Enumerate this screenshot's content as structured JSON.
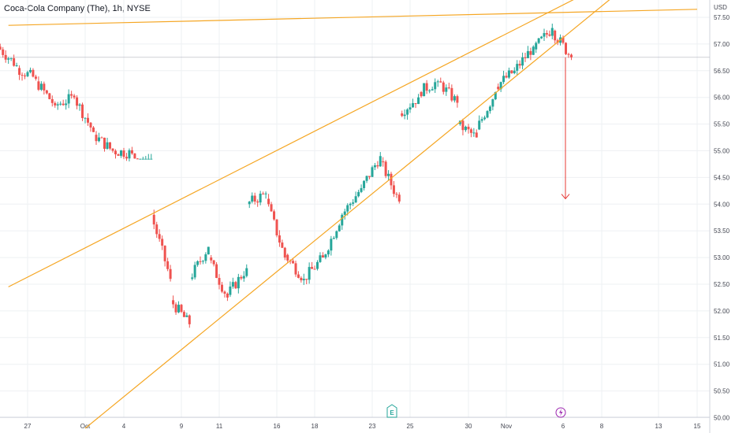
{
  "header": {
    "title": "Coca-Cola Company (The), 1h, NYSE",
    "currency": "USD"
  },
  "colors": {
    "up": "#26a69a",
    "down": "#ef5350",
    "trendline": "#f5a623",
    "arrow": "#e53935",
    "grid": "#eef0f3",
    "earnings_badge": "#26a69a",
    "dividend_badge": "#9c27b0"
  },
  "events": {
    "earnings": {
      "label": "E",
      "date": "Oct 24"
    },
    "dividend": {
      "icon": "lightning-icon",
      "date": "Nov 6"
    }
  },
  "chart_data": {
    "type": "candlestick",
    "title": "Coca-Cola Company (The), 1h, NYSE",
    "xlabel": "",
    "ylabel": "USD",
    "ylim": [
      50.0,
      57.75
    ],
    "grid": true,
    "x_ticks": [
      "27",
      "Oct",
      "4",
      "9",
      "11",
      "16",
      "18",
      "23",
      "25",
      "30",
      "Nov",
      "6",
      "8",
      "13",
      "15"
    ],
    "y_ticks": [
      "57.50",
      "57.00",
      "56.50",
      "56.00",
      "55.50",
      "55.00",
      "54.50",
      "54.00",
      "53.50",
      "53.00",
      "52.50",
      "52.00",
      "51.50",
      "51.00",
      "50.50",
      "50.00"
    ],
    "last_price": 56.75,
    "anchors": [
      {
        "d": "Sep 26",
        "o": 56.95,
        "c": 56.6,
        "l": 56.5,
        "h": 57.05
      },
      {
        "d": "Sep 27",
        "o": 56.55,
        "c": 56.35,
        "l": 56.25,
        "h": 56.6
      },
      {
        "d": "Sep 28",
        "o": 56.3,
        "c": 55.85,
        "l": 55.7,
        "h": 56.4
      },
      {
        "d": "Sep 29",
        "o": 55.85,
        "c": 56.0,
        "l": 55.7,
        "h": 56.15
      },
      {
        "d": "Oct 2",
        "o": 56.0,
        "c": 55.35,
        "l": 55.2,
        "h": 56.1
      },
      {
        "d": "Oct 3",
        "o": 55.3,
        "c": 55.0,
        "l": 54.85,
        "h": 55.5
      },
      {
        "d": "Oct 4",
        "o": 55.0,
        "c": 54.95,
        "l": 54.8,
        "h": 55.15
      },
      {
        "d": "Oct 5",
        "o": 54.95,
        "c": 54.5,
        "l": 54.85,
        "h": 55.1
      },
      {
        "d": "Oct 6",
        "o": 53.8,
        "c": 52.6,
        "l": 52.4,
        "h": 53.9
      },
      {
        "d": "Oct 9",
        "o": 52.2,
        "c": 51.75,
        "l": 51.55,
        "h": 52.5
      },
      {
        "d": "Oct 10",
        "o": 52.6,
        "c": 53.2,
        "l": 52.5,
        "h": 53.3
      },
      {
        "d": "Oct 11",
        "o": 53.0,
        "c": 52.25,
        "l": 52.1,
        "h": 53.2
      },
      {
        "d": "Oct 12",
        "o": 52.3,
        "c": 52.8,
        "l": 52.2,
        "h": 52.9
      },
      {
        "d": "Oct 13",
        "o": 54.0,
        "c": 54.2,
        "l": 53.9,
        "h": 54.35
      },
      {
        "d": "Oct 16",
        "o": 54.1,
        "c": 53.0,
        "l": 52.9,
        "h": 54.2
      },
      {
        "d": "Oct 17",
        "o": 53.05,
        "c": 52.6,
        "l": 52.45,
        "h": 53.7
      },
      {
        "d": "Oct 18",
        "o": 52.6,
        "c": 53.0,
        "l": 52.45,
        "h": 53.1
      },
      {
        "d": "Oct 19",
        "o": 53.0,
        "c": 53.8,
        "l": 52.9,
        "h": 53.9
      },
      {
        "d": "Oct 20",
        "o": 53.8,
        "c": 54.3,
        "l": 53.7,
        "h": 54.4
      },
      {
        "d": "Oct 23",
        "o": 54.3,
        "c": 54.9,
        "l": 54.2,
        "h": 55.05
      },
      {
        "d": "Oct 24",
        "o": 54.8,
        "c": 54.05,
        "l": 53.95,
        "h": 54.9
      },
      {
        "d": "Oct 25",
        "o": 55.7,
        "c": 56.0,
        "l": 55.35,
        "h": 56.15
      },
      {
        "d": "Oct 26",
        "o": 56.1,
        "c": 56.3,
        "l": 55.9,
        "h": 56.6
      },
      {
        "d": "Oct 27",
        "o": 56.3,
        "c": 55.9,
        "l": 55.7,
        "h": 56.4
      },
      {
        "d": "Oct 30",
        "o": 55.5,
        "c": 55.25,
        "l": 55.1,
        "h": 55.6
      },
      {
        "d": "Oct 31",
        "o": 55.4,
        "c": 56.1,
        "l": 55.3,
        "h": 56.2
      },
      {
        "d": "Nov 1",
        "o": 56.2,
        "c": 56.5,
        "l": 56.1,
        "h": 56.8
      },
      {
        "d": "Nov 2",
        "o": 56.5,
        "c": 56.95,
        "l": 56.3,
        "h": 57.1
      },
      {
        "d": "Nov 3",
        "o": 56.9,
        "c": 57.3,
        "l": 56.8,
        "h": 57.6
      },
      {
        "d": "Nov 6",
        "o": 57.25,
        "c": 56.75,
        "l": 56.7,
        "h": 57.3
      }
    ],
    "trendlines": [
      {
        "name": "resistance-horizontal",
        "x1": "Sep 26",
        "y1": 57.35,
        "x2": "Nov 15",
        "y2": 57.65
      },
      {
        "name": "wedge-upper",
        "x1": "Sep 26",
        "y1": 52.45,
        "x2": "Nov 8",
        "y2": 58.1
      },
      {
        "name": "wedge-lower",
        "x1": "Oct 2",
        "y1": 49.8,
        "x2": "Nov 9",
        "y2": 58.0
      }
    ],
    "projection_arrow": {
      "date": "Nov 6",
      "from": 56.75,
      "to": 54.1
    }
  }
}
